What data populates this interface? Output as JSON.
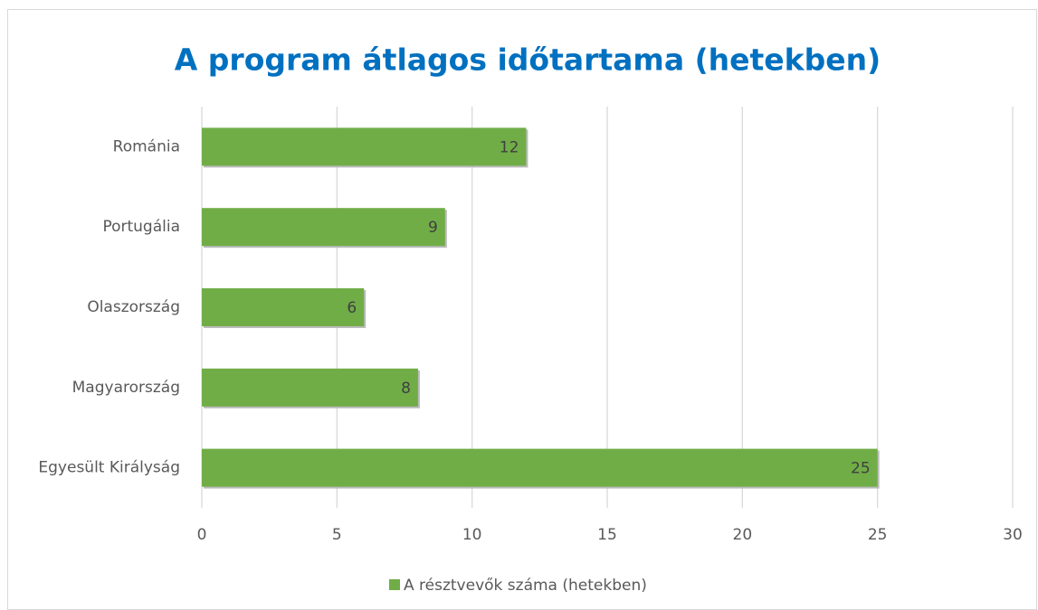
{
  "chart_data": {
    "type": "bar",
    "orientation": "horizontal",
    "title": "A program átlagos időtartama (hetekben)",
    "categories": [
      "Románia",
      "Portugália",
      "Olaszország",
      "Magyarország",
      "Egyesült Királyság"
    ],
    "series": [
      {
        "name": "A résztvevők száma (hetekben)",
        "color": "#70ad47",
        "values": [
          12,
          9,
          6,
          8,
          25
        ]
      }
    ],
    "xlim": [
      0,
      30
    ],
    "xticks": [
      0,
      5,
      10,
      15,
      20,
      25,
      30
    ],
    "grid": true,
    "legend": "bottom"
  }
}
